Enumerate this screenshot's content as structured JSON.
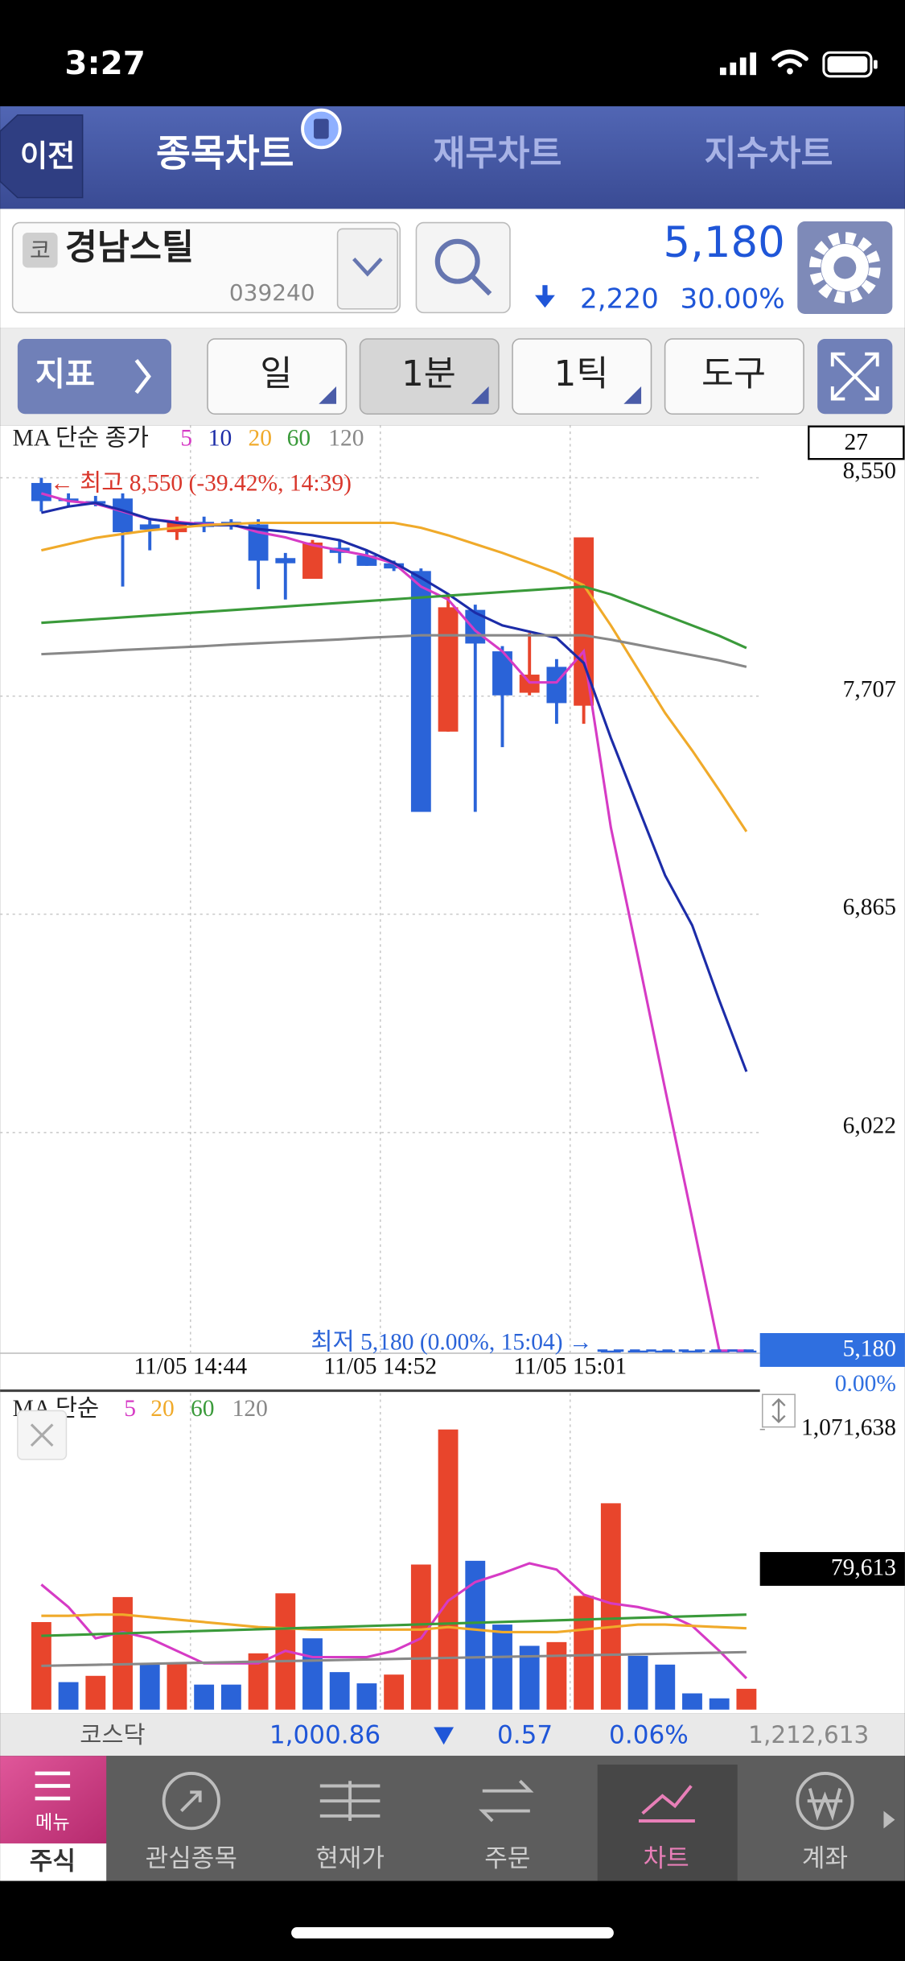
{
  "status_bar": {
    "time": "3:27"
  },
  "nav": {
    "back": "이전",
    "tabs": [
      "종목차트",
      "재무차트",
      "지수차트"
    ]
  },
  "stock": {
    "badge": "코",
    "name": "경남스틸",
    "code": "039240",
    "price": "5,180",
    "change": "2,220",
    "change_rate": "30.00%"
  },
  "toolbar": {
    "indicator": "지표",
    "period": "일",
    "interval": "1분",
    "tick": "1틱",
    "tools": "도구"
  },
  "chart_data": [
    {
      "type": "candlestick",
      "legend_title": "MA 단순 종가",
      "count": 27,
      "categories": [
        null,
        null,
        null,
        null,
        null,
        "11/05 14:44",
        null,
        null,
        null,
        null,
        null,
        null,
        "11/05 14:52",
        null,
        null,
        null,
        null,
        null,
        null,
        "11/05 15:01",
        null,
        null,
        null,
        null,
        null,
        null,
        null
      ],
      "open": [
        8530,
        8470,
        8460,
        8470,
        8370,
        8340,
        8380,
        8380,
        8370,
        8240,
        8160,
        8280,
        8250,
        8220,
        8190,
        7570,
        8040,
        7880,
        7720,
        7820,
        7670,
        5180,
        5180,
        5180,
        5180,
        5180,
        5180
      ],
      "high": [
        8550,
        8490,
        8480,
        8490,
        8390,
        8400,
        8400,
        8390,
        8390,
        8260,
        8310,
        8310,
        8270,
        8230,
        8200,
        8100,
        8060,
        7900,
        7950,
        7850,
        8320,
        5180,
        5180,
        5180,
        5180,
        5180,
        5180
      ],
      "low": [
        8420,
        8440,
        8440,
        8130,
        8270,
        8310,
        8340,
        8350,
        8120,
        8080,
        8160,
        8220,
        8210,
        8190,
        7260,
        7570,
        7260,
        7510,
        7710,
        7600,
        7600,
        5180,
        5180,
        5180,
        5180,
        5180,
        5180
      ],
      "close": [
        8460,
        8460,
        8450,
        8340,
        8350,
        8380,
        8360,
        8370,
        8230,
        8220,
        8300,
        8260,
        8210,
        8200,
        7260,
        8050,
        7910,
        7710,
        7790,
        7680,
        8320,
        5180,
        5180,
        5180,
        5180,
        5180,
        5180
      ],
      "up_color": "#e8452c",
      "down_color": "#2a63d8",
      "series": [
        {
          "name": "5",
          "color": "#d63bc5",
          "values": [
            8490,
            8460,
            8450,
            8420,
            8390,
            8380,
            8370,
            8370,
            8340,
            8320,
            8290,
            8270,
            8250,
            8220,
            8130,
            8080,
            7960,
            7880,
            7760,
            7760,
            7880,
            7200,
            6700,
            6190,
            5690,
            5180,
            5180
          ]
        },
        {
          "name": "10",
          "color": "#1c2ca8",
          "values": [
            8415,
            8439,
            8453,
            8424,
            8391,
            8376,
            8367,
            8367,
            8352,
            8342,
            8328,
            8309,
            8270,
            8222,
            8164,
            8101,
            8029,
            7980,
            7956,
            7932,
            7835,
            7546,
            7280,
            7015,
            6822,
            6532,
            6257
          ]
        },
        {
          "name": "20",
          "color": "#f0aa2a",
          "values": [
            8270,
            8294,
            8318,
            8333,
            8347,
            8357,
            8367,
            8372,
            8376,
            8376,
            8376,
            8376,
            8376,
            8376,
            8357,
            8328,
            8294,
            8260,
            8222,
            8183,
            8135,
            7980,
            7811,
            7642,
            7497,
            7343,
            7184
          ]
        },
        {
          "name": "60",
          "color": "#3a9a3a",
          "values": [
            7990,
            7997,
            8004,
            8011,
            8018,
            8025,
            8032,
            8039,
            8046,
            8053,
            8060,
            8067,
            8074,
            8081,
            8088,
            8095,
            8102,
            8109,
            8116,
            8123,
            8130,
            8100,
            8060,
            8020,
            7980,
            7940,
            7893
          ]
        },
        {
          "name": "120",
          "color": "#888888",
          "values": [
            7869,
            7874,
            7879,
            7885,
            7890,
            7895,
            7900,
            7906,
            7911,
            7916,
            7921,
            7926,
            7932,
            7937,
            7942,
            7942,
            7942,
            7942,
            7942,
            7942,
            7942,
            7925,
            7905,
            7885,
            7865,
            7845,
            7820
          ]
        }
      ],
      "ylim": [
        5170,
        8753
      ],
      "yticks": [
        {
          "value": 8550,
          "label": "8,550"
        },
        {
          "value": 7707,
          "label": "7,707"
        },
        {
          "value": 6865,
          "label": "6,865"
        },
        {
          "value": 6022,
          "label": "6,022"
        }
      ],
      "current": {
        "value": 5180,
        "label": "5,180",
        "rate": "0.00%"
      },
      "annotations": [
        {
          "text": "← 최고 8,550 (-39.42%, 14:39)",
          "value": 8550,
          "color": "#d9362b"
        },
        {
          "text": "최저 5,180 (0.00%, 15:04) →",
          "value": 5180,
          "color": "#2a63d8"
        }
      ],
      "grid": true
    },
    {
      "type": "bar",
      "legend_title": "MA 단순",
      "values": [
        334900,
        105200,
        129200,
        430600,
        177000,
        177000,
        95700,
        95700,
        215300,
        444900,
        272700,
        143500,
        100500,
        134000,
        555000,
        1071638,
        569300,
        325300,
        244000,
        258300,
        435300,
        789400,
        205700,
        172200,
        62200,
        43100,
        79613
      ],
      "colors": [
        "#e8452c",
        "#2a63d8",
        "#e8452c",
        "#e8452c",
        "#2a63d8",
        "#e8452c",
        "#2a63d8",
        "#2a63d8",
        "#e8452c",
        "#e8452c",
        "#2a63d8",
        "#2a63d8",
        "#2a63d8",
        "#e8452c",
        "#e8452c",
        "#e8452c",
        "#2a63d8",
        "#2a63d8",
        "#2a63d8",
        "#e8452c",
        "#e8452c",
        "#e8452c",
        "#2a63d8",
        "#2a63d8",
        "#2a63d8",
        "#2a63d8",
        "#e8452c"
      ],
      "series": [
        {
          "name": "5",
          "color": "#d63bc5",
          "values": [
            478400,
            392300,
            272700,
            296600,
            272700,
            224800,
            177000,
            177000,
            177000,
            224800,
            200900,
            200900,
            200900,
            224800,
            272700,
            416200,
            488000,
            521500,
            559700,
            535800,
            440100,
            406600,
            392300,
            368400,
            320500,
            224800,
            119600
          ]
        },
        {
          "name": "20",
          "color": "#f0aa2a",
          "values": [
            358800,
            358800,
            363600,
            363600,
            354000,
            344400,
            334900,
            325300,
            315700,
            311000,
            306200,
            306200,
            306200,
            306200,
            306200,
            315700,
            306200,
            296600,
            296600,
            296600,
            306200,
            315700,
            325300,
            325300,
            320500,
            315700,
            311000
          ]
        },
        {
          "name": "60",
          "color": "#3a9a3a",
          "values": [
            282300,
            285400,
            288600,
            291700,
            294800,
            297900,
            301100,
            304200,
            307300,
            310400,
            313600,
            316700,
            319800,
            322900,
            326100,
            329200,
            332300,
            335400,
            338600,
            341700,
            344800,
            347900,
            351100,
            354200,
            357300,
            360400,
            363600
          ]
        },
        {
          "name": "120",
          "color": "#888888",
          "values": [
            167400,
            169400,
            171500,
            173500,
            175500,
            177500,
            179600,
            181600,
            183600,
            185600,
            187700,
            189700,
            191700,
            193700,
            195800,
            197800,
            199800,
            201800,
            203900,
            205900,
            207900,
            209900,
            212000,
            214000,
            216000,
            218000,
            220100
          ]
        }
      ],
      "ylim": [
        0,
        1071638
      ],
      "yticks": [
        {
          "value": 1071638,
          "label": "1,071,638"
        }
      ],
      "last_label": "79,613"
    }
  ],
  "index_bar": {
    "name": "코스닥",
    "value": "1,000.86",
    "change": "0.57",
    "rate": "0.06%",
    "volume": "1,212,613"
  },
  "bottom_nav": {
    "menu": "메뉴",
    "section": "주식",
    "items": [
      "관심종목",
      "현재가",
      "주문",
      "차트",
      "계좌"
    ]
  }
}
